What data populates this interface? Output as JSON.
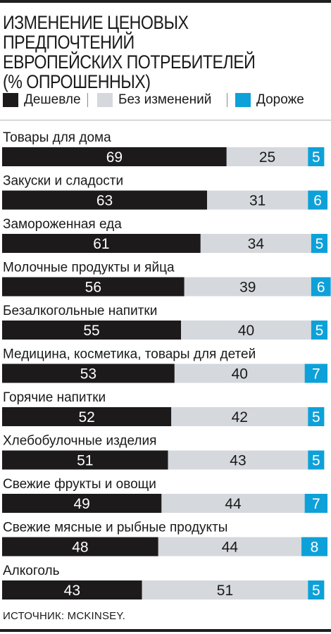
{
  "title": "Изменение ценовых предпочтений\nевропейских потребителей\n(% опрошенных)",
  "legend": [
    {
      "label": "Дешевле",
      "color": "#1c1a1b"
    },
    {
      "label": "Без изменений",
      "color": "#d5d8dc"
    },
    {
      "label": "Дороже",
      "color": "#0ea1d9"
    }
  ],
  "source": "Источник: McKinsey.",
  "chart_data": {
    "type": "bar",
    "orientation": "horizontal",
    "stacked": true,
    "categories": [
      "Товары для дома",
      "Закуски и сладости",
      "Замороженная еда",
      "Молочные продукты и яйца",
      "Безалкогольные напитки",
      "Медицина, косметика, товары для детей",
      "Горячие напитки",
      "Хлебобулочные изделия",
      "Свежие фрукты и овощи",
      "Свежие мясные и рыбные продукты",
      "Алкоголь"
    ],
    "series": [
      {
        "name": "Дешевле",
        "color": "#1c1a1b",
        "values": [
          69,
          63,
          61,
          56,
          55,
          53,
          52,
          51,
          49,
          48,
          43
        ]
      },
      {
        "name": "Без изменений",
        "color": "#d5d8dc",
        "values": [
          25,
          31,
          34,
          39,
          40,
          40,
          42,
          43,
          44,
          44,
          51
        ]
      },
      {
        "name": "Дороже",
        "color": "#0ea1d9",
        "values": [
          5,
          6,
          5,
          6,
          5,
          7,
          5,
          5,
          7,
          8,
          5
        ]
      }
    ],
    "xlim": [
      0,
      100
    ],
    "legend_position": "top",
    "grid": false,
    "title": "Изменение ценовых предпочтений европейских потребителей (% опрошенных)"
  }
}
